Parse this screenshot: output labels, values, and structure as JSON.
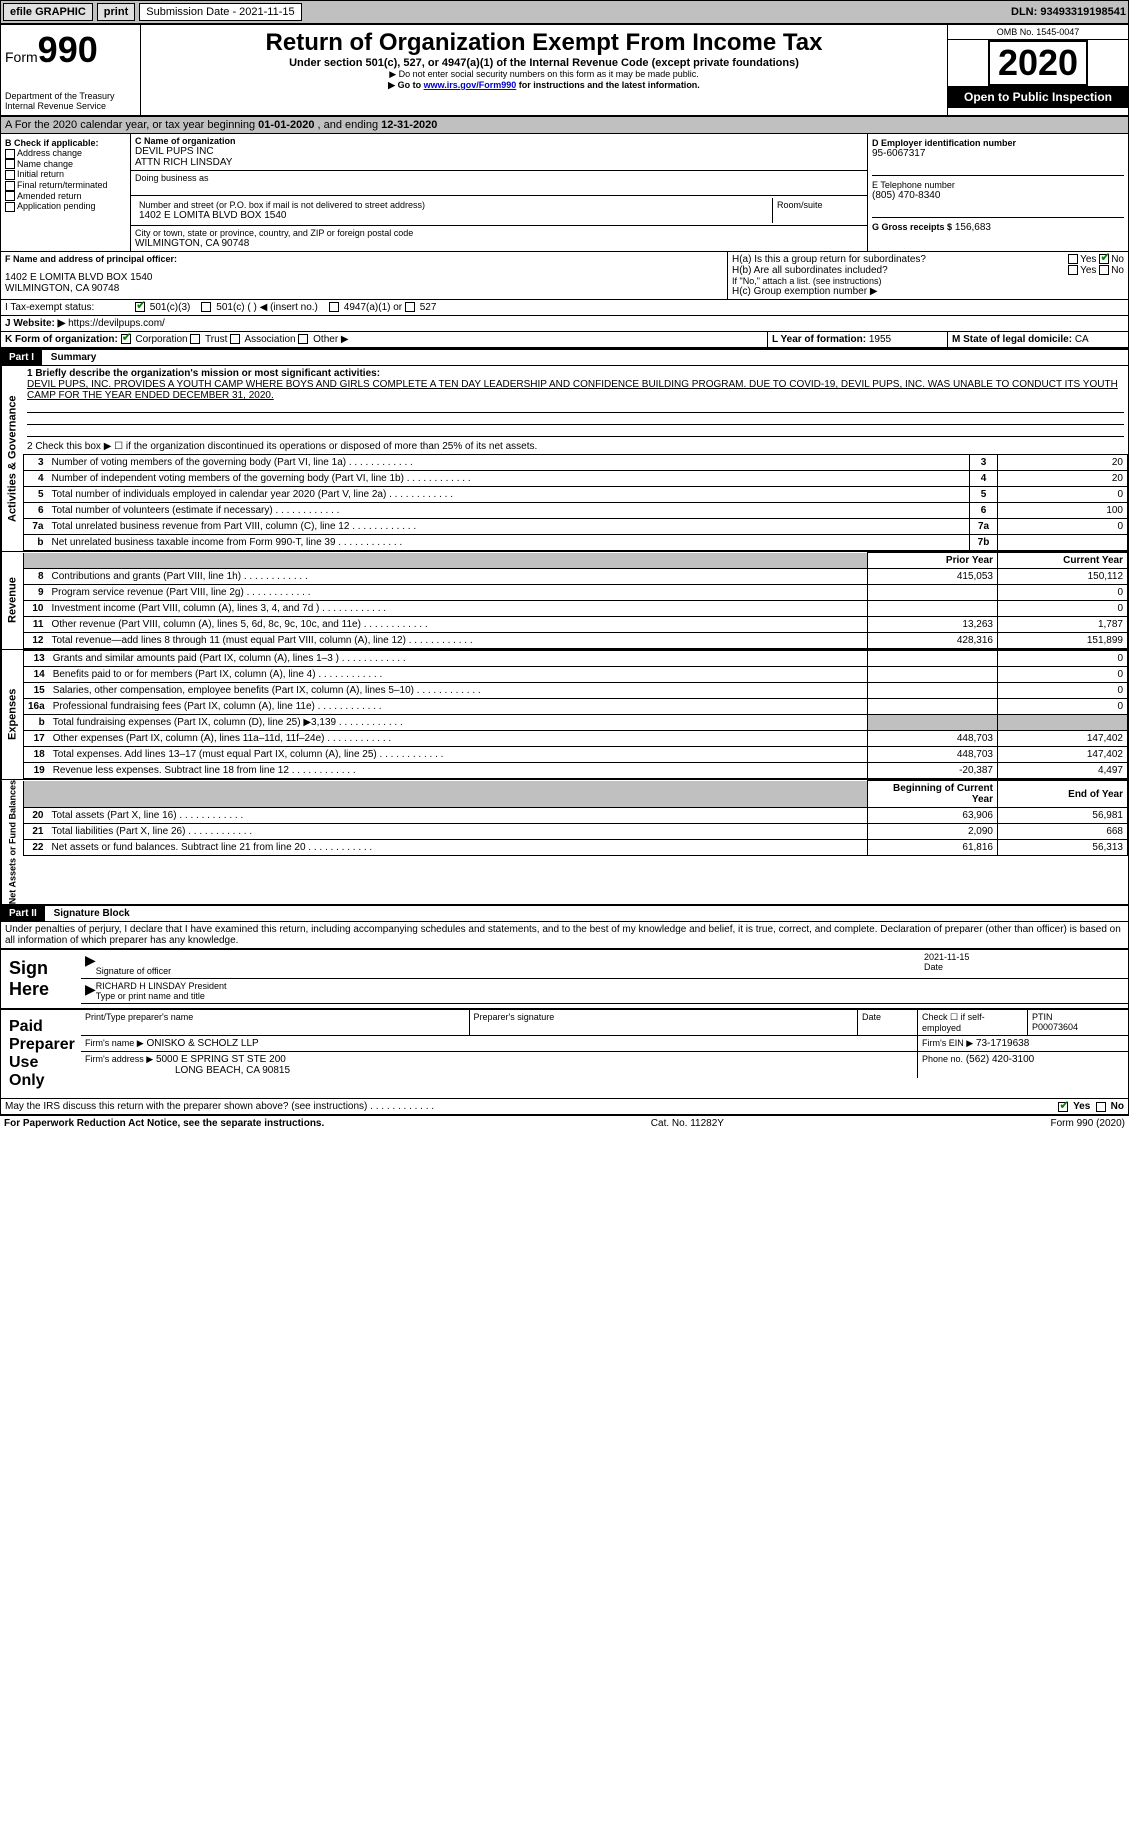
{
  "topbar": {
    "efile_label": "efile GRAPHIC",
    "print_btn": "print",
    "submission_label": "Submission Date - 2021-11-15",
    "dln": "DLN: 93493319198541"
  },
  "header": {
    "form_label": "Form",
    "form_number": "990",
    "dept": "Department of the Treasury",
    "irs": "Internal Revenue Service",
    "title": "Return of Organization Exempt From Income Tax",
    "subtitle": "Under section 501(c), 527, or 4947(a)(1) of the Internal Revenue Code (except private foundations)",
    "note1": "▶ Do not enter social security numbers on this form as it may be made public.",
    "note2_pre": "▶ Go to ",
    "note2_link": "www.irs.gov/Form990",
    "note2_post": " for instructions and the latest information.",
    "omb": "OMB No. 1545-0047",
    "year": "2020",
    "open_public": "Open to Public Inspection"
  },
  "period": {
    "text_pre": "A For the 2020 calendar year, or tax year beginning ",
    "begin": "01-01-2020",
    "mid": " , and ending ",
    "end": "12-31-2020"
  },
  "box_b": {
    "label": "B Check if applicable:",
    "opts": [
      "Address change",
      "Name change",
      "Initial return",
      "Final return/terminated",
      "Amended return",
      "Application pending"
    ]
  },
  "box_c": {
    "label": "C Name of organization",
    "name1": "DEVIL PUPS INC",
    "name2": "ATTN RICH LINSDAY",
    "dba_label": "Doing business as",
    "addr_label": "Number and street (or P.O. box if mail is not delivered to street address)",
    "room_label": "Room/suite",
    "addr": "1402 E LOMITA BLVD BOX 1540",
    "city_label": "City or town, state or province, country, and ZIP or foreign postal code",
    "city": "WILMINGTON, CA  90748"
  },
  "box_d": {
    "label": "D Employer identification number",
    "value": "95-6067317"
  },
  "box_e": {
    "label": "E Telephone number",
    "value": "(805) 470-8340"
  },
  "box_g": {
    "label": "G Gross receipts $",
    "value": "156,683"
  },
  "box_f": {
    "label": "F Name and address of principal officer:",
    "line1": "1402 E LOMITA BLVD BOX 1540",
    "line2": "WILMINGTON, CA  90748"
  },
  "box_h": {
    "a_label": "H(a)  Is this a group return for subordinates?",
    "b_label": "H(b)  Are all subordinates included?",
    "yes": "Yes",
    "no": "No",
    "b_note": "If \"No,\" attach a list. (see instructions)",
    "c_label": "H(c)  Group exemption number ▶"
  },
  "box_i": {
    "label": "I   Tax-exempt status:",
    "opt1": "501(c)(3)",
    "opt2": "501(c) (  ) ◀ (insert no.)",
    "opt3": "4947(a)(1) or",
    "opt4": "527"
  },
  "box_j": {
    "label": "J   Website: ▶",
    "value": "https://devilpups.com/"
  },
  "box_k": {
    "label": "K Form of organization:",
    "opts": [
      "Corporation",
      "Trust",
      "Association",
      "Other ▶"
    ]
  },
  "box_l": {
    "label": "L Year of formation:",
    "value": "1955"
  },
  "box_m": {
    "label": "M State of legal domicile:",
    "value": "CA"
  },
  "part1": {
    "hdr": "Part I",
    "title": "Summary",
    "line1_label": "1  Briefly describe the organization's mission or most significant activities:",
    "mission": "DEVIL PUPS, INC. PROVIDES A YOUTH CAMP WHERE BOYS AND GIRLS COMPLETE A TEN DAY LEADERSHIP AND CONFIDENCE BUILDING PROGRAM. DUE TO COVID-19, DEVIL PUPS, INC. WAS UNABLE TO CONDUCT ITS YOUTH CAMP FOR THE YEAR ENDED DECEMBER 31, 2020.",
    "line2": "2   Check this box ▶ ☐ if the organization discontinued its operations or disposed of more than 25% of its net assets.",
    "gov_label": "Activities & Governance",
    "gov_rows": [
      {
        "n": "3",
        "desc": "Number of voting members of the governing body (Part VI, line 1a)",
        "box": "3",
        "val": "20"
      },
      {
        "n": "4",
        "desc": "Number of independent voting members of the governing body (Part VI, line 1b)",
        "box": "4",
        "val": "20"
      },
      {
        "n": "5",
        "desc": "Total number of individuals employed in calendar year 2020 (Part V, line 2a)",
        "box": "5",
        "val": "0"
      },
      {
        "n": "6",
        "desc": "Total number of volunteers (estimate if necessary)",
        "box": "6",
        "val": "100"
      },
      {
        "n": "7a",
        "desc": "Total unrelated business revenue from Part VIII, column (C), line 12",
        "box": "7a",
        "val": "0"
      },
      {
        "n": "b",
        "desc": "Net unrelated business taxable income from Form 990-T, line 39",
        "box": "7b",
        "val": ""
      }
    ],
    "col_prior": "Prior Year",
    "col_current": "Current Year",
    "rev_label": "Revenue",
    "rev_rows": [
      {
        "n": "8",
        "desc": "Contributions and grants (Part VIII, line 1h)",
        "py": "415,053",
        "cy": "150,112"
      },
      {
        "n": "9",
        "desc": "Program service revenue (Part VIII, line 2g)",
        "py": "",
        "cy": "0"
      },
      {
        "n": "10",
        "desc": "Investment income (Part VIII, column (A), lines 3, 4, and 7d )",
        "py": "",
        "cy": "0"
      },
      {
        "n": "11",
        "desc": "Other revenue (Part VIII, column (A), lines 5, 6d, 8c, 9c, 10c, and 11e)",
        "py": "13,263",
        "cy": "1,787"
      },
      {
        "n": "12",
        "desc": "Total revenue—add lines 8 through 11 (must equal Part VIII, column (A), line 12)",
        "py": "428,316",
        "cy": "151,899"
      }
    ],
    "exp_label": "Expenses",
    "exp_rows": [
      {
        "n": "13",
        "desc": "Grants and similar amounts paid (Part IX, column (A), lines 1–3 )",
        "py": "",
        "cy": "0"
      },
      {
        "n": "14",
        "desc": "Benefits paid to or for members (Part IX, column (A), line 4)",
        "py": "",
        "cy": "0"
      },
      {
        "n": "15",
        "desc": "Salaries, other compensation, employee benefits (Part IX, column (A), lines 5–10)",
        "py": "",
        "cy": "0"
      },
      {
        "n": "16a",
        "desc": "Professional fundraising fees (Part IX, column (A), line 11e)",
        "py": "",
        "cy": "0"
      },
      {
        "n": "b",
        "desc": "Total fundraising expenses (Part IX, column (D), line 25) ▶3,139",
        "py": "GREY",
        "cy": "GREY"
      },
      {
        "n": "17",
        "desc": "Other expenses (Part IX, column (A), lines 11a–11d, 11f–24e)",
        "py": "448,703",
        "cy": "147,402"
      },
      {
        "n": "18",
        "desc": "Total expenses. Add lines 13–17 (must equal Part IX, column (A), line 25)",
        "py": "448,703",
        "cy": "147,402"
      },
      {
        "n": "19",
        "desc": "Revenue less expenses. Subtract line 18 from line 12",
        "py": "-20,387",
        "cy": "4,497"
      }
    ],
    "na_label": "Net Assets or Fund Balances",
    "col_begin": "Beginning of Current Year",
    "col_end": "End of Year",
    "na_rows": [
      {
        "n": "20",
        "desc": "Total assets (Part X, line 16)",
        "py": "63,906",
        "cy": "56,981"
      },
      {
        "n": "21",
        "desc": "Total liabilities (Part X, line 26)",
        "py": "2,090",
        "cy": "668"
      },
      {
        "n": "22",
        "desc": "Net assets or fund balances. Subtract line 21 from line 20",
        "py": "61,816",
        "cy": "56,313"
      }
    ]
  },
  "part2": {
    "hdr": "Part II",
    "title": "Signature Block",
    "penalties": "Under penalties of perjury, I declare that I have examined this return, including accompanying schedules and statements, and to the best of my knowledge and belief, it is true, correct, and complete. Declaration of preparer (other than officer) is based on all information of which preparer has any knowledge.",
    "sign_here": "Sign Here",
    "sig_officer": "Signature of officer",
    "date_label": "Date",
    "sig_date": "2021-11-15",
    "officer_name": "RICHARD H LINSDAY President",
    "type_name": "Type or print name and title",
    "paid": "Paid Preparer Use Only",
    "prep_name_label": "Print/Type preparer's name",
    "prep_sig_label": "Preparer's signature",
    "check_self": "Check ☐ if self-employed",
    "ptin_label": "PTIN",
    "ptin": "P00073604",
    "firm_name_label": "Firm's name   ▶",
    "firm_name": "ONISKO & SCHOLZ LLP",
    "firm_ein_label": "Firm's EIN ▶",
    "firm_ein": "73-1719638",
    "firm_addr_label": "Firm's address ▶",
    "firm_addr1": "5000 E SPRING ST STE 200",
    "firm_addr2": "LONG BEACH, CA  90815",
    "phone_label": "Phone no.",
    "phone": "(562) 420-3100",
    "discuss": "May the IRS discuss this return with the preparer shown above? (see instructions)",
    "yes": "Yes",
    "no": "No"
  },
  "footer": {
    "left": "For Paperwork Reduction Act Notice, see the separate instructions.",
    "mid": "Cat. No. 11282Y",
    "right": "Form 990 (2020)"
  },
  "colors": {
    "grey": "#c0c0c0",
    "link": "#0000cc",
    "check": "#008000"
  }
}
